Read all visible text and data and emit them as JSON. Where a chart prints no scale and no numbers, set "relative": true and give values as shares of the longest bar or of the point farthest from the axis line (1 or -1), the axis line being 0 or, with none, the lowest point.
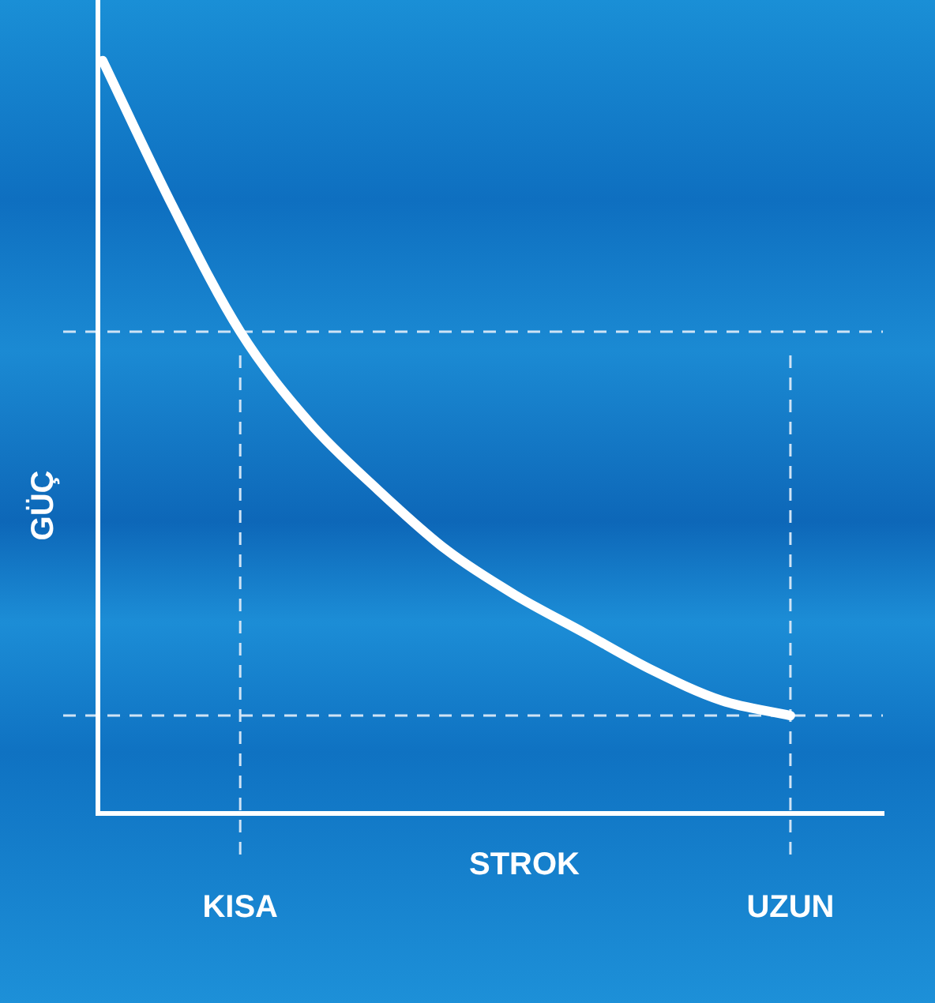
{
  "chart_data": {
    "type": "line",
    "relative": true,
    "xlabel": "STROK",
    "ylabel": "GÜÇ",
    "categories": [
      null,
      null,
      "KISA",
      null,
      null,
      null,
      null,
      null,
      null,
      null,
      "UZUN",
      null
    ],
    "series": [
      {
        "color": "#ffffff",
        "values": [
          1,
          0.81,
          0.64,
          0.52,
          0.43,
          0.35,
          0.29,
          0.24,
          0.19,
          0.15,
          0.13,
          null
        ]
      }
    ],
    "ref_lines": [
      {
        "axis": "x",
        "value": "KISA",
        "color": "#cfe3f5",
        "line_style": "dashed"
      },
      {
        "axis": "x",
        "value": "UZUN",
        "color": "#cfe3f5",
        "line_style": "dashed"
      },
      {
        "axis": "y",
        "value": 0.64,
        "color": "#cfe3f5",
        "line_style": "dashed"
      },
      {
        "axis": "y",
        "value": 0.13,
        "color": "#cfe3f5",
        "line_style": "dashed"
      }
    ],
    "grid": false,
    "legend": false,
    "marker": "none",
    "line_style": "solid"
  }
}
